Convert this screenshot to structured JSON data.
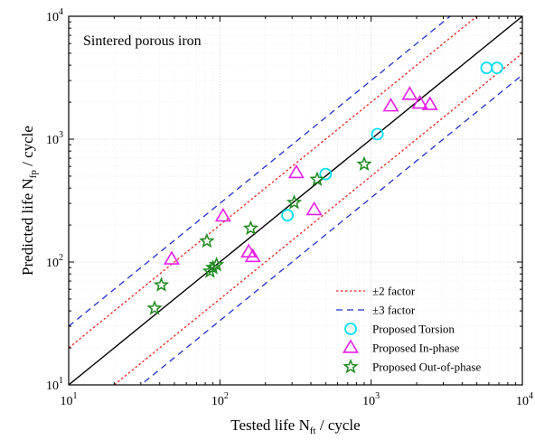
{
  "chart_data": {
    "type": "scatter",
    "x_scale": "log",
    "y_scale": "log",
    "xlim": [
      10,
      10000
    ],
    "ylim": [
      10,
      10000
    ],
    "grid": true,
    "legend_position": "bottom-right",
    "xlabel": "Tested life N",
    "xlabel_sub": "ft",
    "xlabel_suffix": " / cycle",
    "ylabel": "Predicted life N",
    "ylabel_sub": "fp",
    "ylabel_suffix": " / cycle",
    "annotation": "Sintered porous iron",
    "ticks": [
      {
        "value": 10,
        "base": "10",
        "exp": "1"
      },
      {
        "value": 100,
        "base": "10",
        "exp": "2"
      },
      {
        "value": 1000,
        "base": "10",
        "exp": "3"
      },
      {
        "value": 10000,
        "base": "10",
        "exp": "4"
      }
    ],
    "reference_lines": [
      {
        "name": "±2 factor",
        "factor": 2,
        "color": "#e8261c",
        "style": "dotted"
      },
      {
        "name": "±3 factor",
        "factor": 3,
        "color": "#2230c8",
        "style": "dashed"
      }
    ],
    "series": [
      {
        "name": "Proposed Torsion",
        "marker": "circle",
        "color": "#00e0f0",
        "points": [
          [
            280,
            240
          ],
          [
            500,
            520
          ],
          [
            1100,
            1100
          ],
          [
            5800,
            3800
          ],
          [
            6800,
            3800
          ]
        ]
      },
      {
        "name": "Proposed In-phase",
        "marker": "triangle",
        "color": "#e81ee8",
        "points": [
          [
            48,
            105
          ],
          [
            105,
            235
          ],
          [
            155,
            120
          ],
          [
            165,
            110
          ],
          [
            320,
            530
          ],
          [
            420,
            265
          ],
          [
            1350,
            1850
          ],
          [
            1800,
            2300
          ],
          [
            2100,
            1950
          ],
          [
            2450,
            1900
          ]
        ]
      },
      {
        "name": "Proposed Out-of-phase",
        "marker": "star",
        "color": "#1e8a1e",
        "points": [
          [
            37,
            42
          ],
          [
            41,
            65
          ],
          [
            82,
            148
          ],
          [
            86,
            84
          ],
          [
            90,
            90
          ],
          [
            95,
            95
          ],
          [
            160,
            188
          ],
          [
            310,
            305
          ],
          [
            440,
            470
          ],
          [
            900,
            625
          ]
        ]
      }
    ]
  }
}
